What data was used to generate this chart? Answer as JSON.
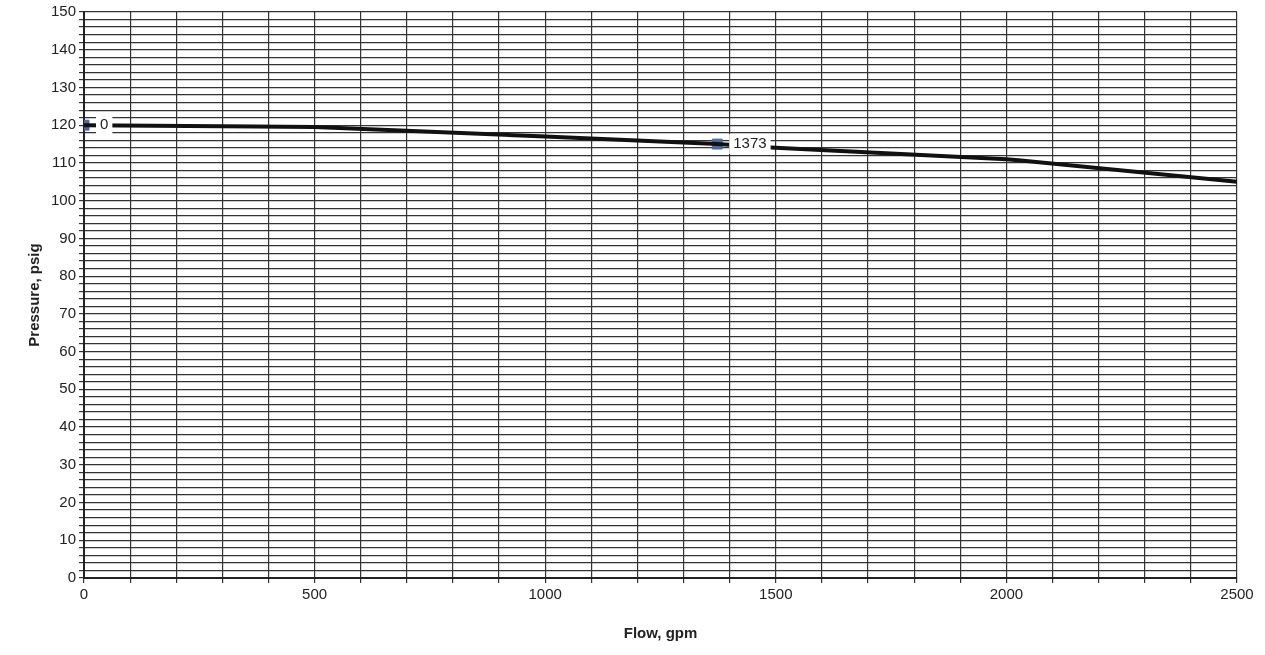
{
  "chart_data": {
    "type": "line",
    "xlabel": "Flow, gpm",
    "ylabel": "Pressure, psig",
    "xlim": [
      0,
      2500
    ],
    "xticks": [
      0,
      {
        "value": 100,
        "label": null
      },
      {
        "value": 200,
        "label": null
      },
      {
        "value": 300,
        "label": null
      },
      {
        "value": 400,
        "label": null
      },
      500,
      {
        "value": 600,
        "label": null
      },
      {
        "value": 700,
        "label": null
      },
      {
        "value": 800,
        "label": null
      },
      {
        "value": 900,
        "label": null
      },
      1000,
      {
        "value": 1100,
        "label": null
      },
      {
        "value": 1200,
        "label": null
      },
      {
        "value": 1300,
        "label": null
      },
      {
        "value": 1400,
        "label": null
      },
      1500,
      {
        "value": 1600,
        "label": null
      },
      {
        "value": 1700,
        "label": null
      },
      {
        "value": 1800,
        "label": null
      },
      {
        "value": 1900,
        "label": null
      },
      2000,
      {
        "value": 2100,
        "label": null
      },
      {
        "value": 2200,
        "label": null
      },
      {
        "value": 2300,
        "label": null
      },
      {
        "value": 2400,
        "label": null
      },
      2500
    ],
    "ylim": [
      0,
      150
    ],
    "yticks": [
      0,
      {
        "value": 2,
        "label": null
      },
      {
        "value": 4,
        "label": null
      },
      {
        "value": 6,
        "label": null
      },
      {
        "value": 8,
        "label": null
      },
      10,
      {
        "value": 12,
        "label": null
      },
      {
        "value": 14,
        "label": null
      },
      {
        "value": 16,
        "label": null
      },
      {
        "value": 18,
        "label": null
      },
      20,
      {
        "value": 22,
        "label": null
      },
      {
        "value": 24,
        "label": null
      },
      {
        "value": 26,
        "label": null
      },
      {
        "value": 28,
        "label": null
      },
      30,
      {
        "value": 32,
        "label": null
      },
      {
        "value": 34,
        "label": null
      },
      {
        "value": 36,
        "label": null
      },
      {
        "value": 38,
        "label": null
      },
      40,
      {
        "value": 42,
        "label": null
      },
      {
        "value": 44,
        "label": null
      },
      {
        "value": 46,
        "label": null
      },
      {
        "value": 48,
        "label": null
      },
      50,
      {
        "value": 52,
        "label": null
      },
      {
        "value": 54,
        "label": null
      },
      {
        "value": 56,
        "label": null
      },
      {
        "value": 58,
        "label": null
      },
      60,
      {
        "value": 62,
        "label": null
      },
      {
        "value": 64,
        "label": null
      },
      {
        "value": 66,
        "label": null
      },
      {
        "value": 68,
        "label": null
      },
      70,
      {
        "value": 72,
        "label": null
      },
      {
        "value": 74,
        "label": null
      },
      {
        "value": 76,
        "label": null
      },
      {
        "value": 78,
        "label": null
      },
      80,
      {
        "value": 82,
        "label": null
      },
      {
        "value": 84,
        "label": null
      },
      {
        "value": 86,
        "label": null
      },
      {
        "value": 88,
        "label": null
      },
      90,
      {
        "value": 92,
        "label": null
      },
      {
        "value": 94,
        "label": null
      },
      {
        "value": 96,
        "label": null
      },
      {
        "value": 98,
        "label": null
      },
      100,
      {
        "value": 102,
        "label": null
      },
      {
        "value": 104,
        "label": null
      },
      {
        "value": 106,
        "label": null
      },
      {
        "value": 108,
        "label": null
      },
      110,
      {
        "value": 112,
        "label": null
      },
      {
        "value": 114,
        "label": null
      },
      {
        "value": 116,
        "label": null
      },
      {
        "value": 118,
        "label": null
      },
      120,
      {
        "value": 122,
        "label": null
      },
      {
        "value": 124,
        "label": null
      },
      {
        "value": 126,
        "label": null
      },
      {
        "value": 128,
        "label": null
      },
      130,
      {
        "value": 132,
        "label": null
      },
      {
        "value": 134,
        "label": null
      },
      {
        "value": 136,
        "label": null
      },
      {
        "value": 138,
        "label": null
      },
      140,
      {
        "value": 142,
        "label": null
      },
      {
        "value": 144,
        "label": null
      },
      {
        "value": 146,
        "label": null
      },
      {
        "value": 148,
        "label": null
      },
      150
    ],
    "grid": true,
    "series": [
      {
        "color": "#111111",
        "marker": "none",
        "x": [
          0,
          500,
          1000,
          1373,
          1500,
          2000,
          2500
        ],
        "values": [
          120,
          119.5,
          117,
          115,
          114,
          111,
          105
        ]
      },
      {
        "type": "scatter",
        "color": "#4a6aa0",
        "marker": "square",
        "x": [
          0,
          1373
        ],
        "values": [
          120,
          115
        ]
      }
    ],
    "annotations": [
      {
        "text": "0",
        "x": 0,
        "y": 120
      },
      {
        "text": "1373",
        "x": 1373,
        "y": 115
      }
    ]
  }
}
